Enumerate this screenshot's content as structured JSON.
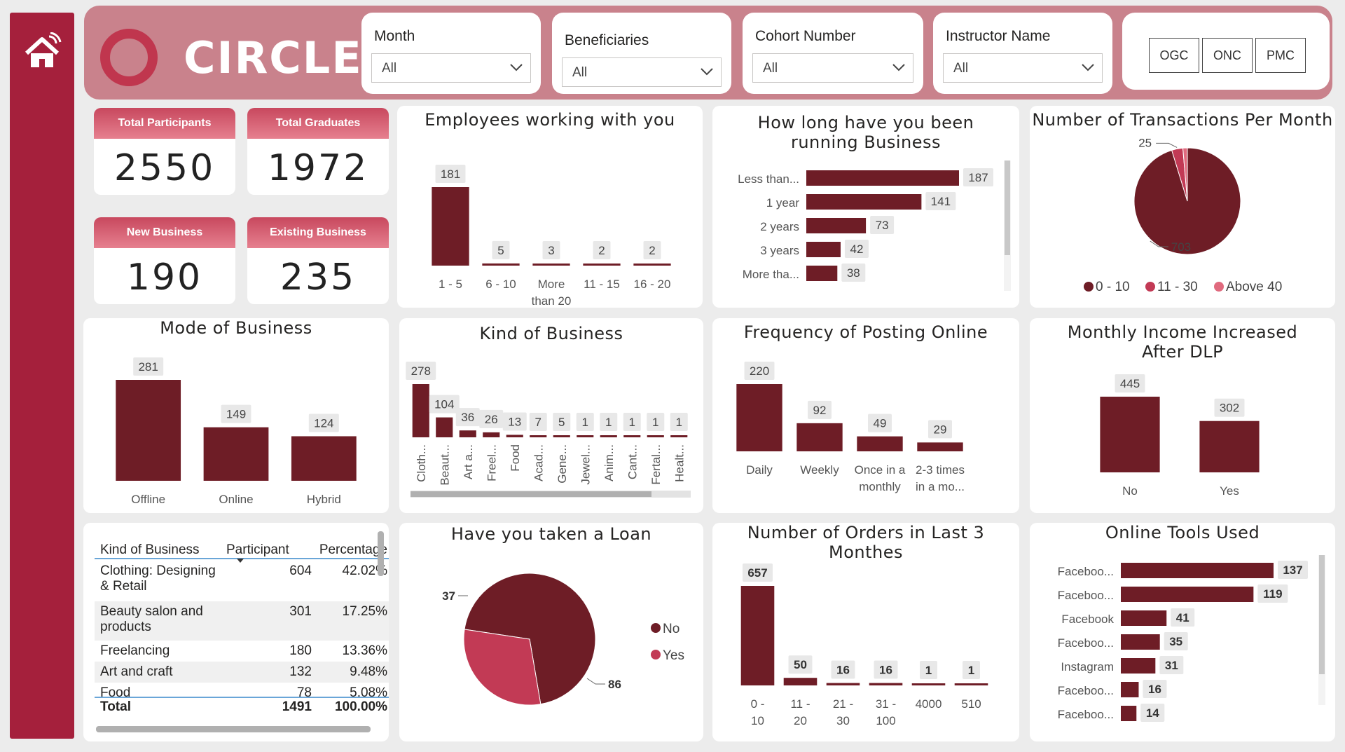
{
  "app": {
    "logo_text": "CIRCLE"
  },
  "colors": {
    "primary": "#6e1d26",
    "mid": "#c23a55",
    "light": "#e06a7e",
    "sidebar": "#a5203c",
    "header": "#c9828c"
  },
  "slicers": [
    {
      "label": "Month",
      "value": "All"
    },
    {
      "label": "Beneficiaries",
      "value": "All"
    },
    {
      "label": "Cohort Number",
      "value": "All"
    },
    {
      "label": "Instructor Name",
      "value": "All"
    }
  ],
  "codes": [
    "OGC",
    "ONC",
    "PMC"
  ],
  "kpis": [
    {
      "label": "Total Participants",
      "value": "2550"
    },
    {
      "label": "Total Graduates",
      "value": "1972"
    },
    {
      "label": "New Business",
      "value": "190"
    },
    {
      "label": "Existing Business",
      "value": "235"
    }
  ],
  "titles": {
    "employees": "Employees working with you",
    "running": "How long have you been running Business",
    "transactions": "Number of Transactions Per Month",
    "mode": "Mode of Business",
    "kind": "Kind of Business",
    "posting": "Frequency of Posting Online",
    "income": "Monthly Income Increased After DLP",
    "loan": "Have you taken a Loan",
    "orders": "Number of Orders in Last 3 Monthes",
    "tools": "Online Tools Used"
  },
  "table": {
    "headers": [
      "Kind of Business",
      "Participant",
      "Percentage"
    ],
    "rows": [
      {
        "kind": "Clothing: Designing & Retail",
        "participant": "604",
        "pct": "42.02%"
      },
      {
        "kind": "Beauty salon and products",
        "participant": "301",
        "pct": "17.25%"
      },
      {
        "kind": "Freelancing",
        "participant": "180",
        "pct": "13.36%"
      },
      {
        "kind": "Art and craft",
        "participant": "132",
        "pct": "9.48%"
      },
      {
        "kind": "Food",
        "participant": "78",
        "pct": "5.08%"
      }
    ],
    "total": {
      "label": "Total",
      "participant": "1491",
      "pct": "100.00%"
    }
  },
  "chart_data": [
    {
      "id": "employees",
      "type": "bar",
      "categories": [
        "1 - 5",
        "6 - 10",
        "More than 20",
        "11 - 15",
        "16 - 20"
      ],
      "values": [
        181,
        5,
        3,
        2,
        2
      ]
    },
    {
      "id": "running",
      "type": "bar",
      "orientation": "horizontal",
      "categories": [
        "Less than...",
        "1 year",
        "2 years",
        "3 years",
        "More tha..."
      ],
      "values": [
        187,
        141,
        73,
        42,
        38
      ]
    },
    {
      "id": "transactions",
      "type": "pie",
      "labels": [
        "0 - 10",
        "11 - 30",
        "Above 40"
      ],
      "values": [
        703,
        25,
        10
      ],
      "shown_labels": [
        "25",
        "703"
      ],
      "legend": "bottom"
    },
    {
      "id": "mode",
      "type": "bar",
      "categories": [
        "Offline",
        "Online",
        "Hybrid"
      ],
      "values": [
        281,
        149,
        124
      ]
    },
    {
      "id": "kind",
      "type": "bar",
      "categories": [
        "Cloth...",
        "Beaut...",
        "Art a...",
        "Freel...",
        "Food",
        "Acad...",
        "Gene...",
        "Jewel...",
        "Anim...",
        "Cant...",
        "Fertal...",
        "Healt..."
      ],
      "values": [
        278,
        104,
        36,
        26,
        13,
        7,
        5,
        1,
        1,
        1,
        1,
        1
      ]
    },
    {
      "id": "posting",
      "type": "bar",
      "categories": [
        "Daily",
        "Weekly",
        "Once in a monthly",
        "2-3 times in a mo..."
      ],
      "values": [
        220,
        92,
        49,
        29
      ]
    },
    {
      "id": "income",
      "type": "bar",
      "categories": [
        "No",
        "Yes"
      ],
      "values": [
        445,
        302
      ]
    },
    {
      "id": "loan",
      "type": "pie",
      "labels": [
        "No",
        "Yes"
      ],
      "values": [
        86,
        37
      ],
      "legend": "right"
    },
    {
      "id": "orders",
      "type": "bar",
      "categories": [
        "0 - 10",
        "11 - 20",
        "21 - 30",
        "31 - 100",
        "4000",
        "510"
      ],
      "values": [
        657,
        50,
        16,
        16,
        1,
        1
      ]
    },
    {
      "id": "tools",
      "type": "bar",
      "orientation": "horizontal",
      "categories": [
        "Faceboo...",
        "Faceboo...",
        "Facebook",
        "Faceboo...",
        "Instagram",
        "Faceboo...",
        "Faceboo..."
      ],
      "values": [
        137,
        119,
        41,
        35,
        31,
        16,
        14
      ]
    }
  ]
}
